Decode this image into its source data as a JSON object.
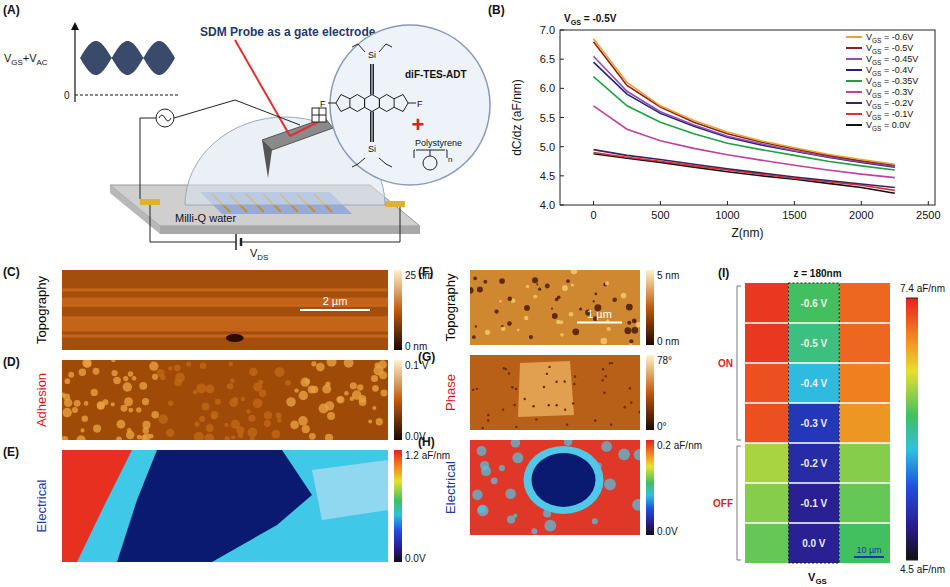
{
  "panel_a": {
    "panel_label": "(A)",
    "title": "SDM Probe as a gate electrode",
    "signal_label": "VGS+VAC",
    "zero_label": "0",
    "medium": "Milli-Q water",
    "bias_label": "VDS",
    "molecule": "diF-TES-ADT",
    "polymer": "Polystyrene",
    "plus": "+",
    "atom_si": "Si",
    "atom_f": "F",
    "repeat": "n"
  },
  "chart_data": {
    "type": "line",
    "panel_label": "(B)",
    "annotation": "VGS = -0.5V",
    "x_label": "Z(nm)",
    "y_label": "dC/dz (aF/nm)",
    "x": [
      0,
      250,
      500,
      750,
      1000,
      1250,
      1500,
      1750,
      2000,
      2250
    ],
    "series": [
      {
        "name": "VGS = -0.6V",
        "color": "#f0a030",
        "values": [
          6.85,
          6.1,
          5.7,
          5.45,
          5.25,
          5.1,
          4.98,
          4.87,
          4.78,
          4.7
        ]
      },
      {
        "name": "VGS = -0.5V",
        "color": "#8b2020",
        "values": [
          6.8,
          6.05,
          5.68,
          5.42,
          5.22,
          5.08,
          4.96,
          4.85,
          4.76,
          4.68
        ]
      },
      {
        "name": "VGS = -0.45V",
        "color": "#9050b0",
        "values": [
          6.55,
          5.95,
          5.6,
          5.37,
          5.18,
          5.05,
          4.93,
          4.83,
          4.74,
          4.66
        ]
      },
      {
        "name": "VGS = -0.4V",
        "color": "#202080",
        "values": [
          6.45,
          5.9,
          5.57,
          5.35,
          5.16,
          5.03,
          4.92,
          4.82,
          4.73,
          4.65
        ]
      },
      {
        "name": "VGS = -0.35V",
        "color": "#20a040",
        "values": [
          6.2,
          5.7,
          5.42,
          5.22,
          5.06,
          4.95,
          4.85,
          4.75,
          4.67,
          4.6
        ]
      },
      {
        "name": "VGS = -0.3V",
        "color": "#c040a0",
        "values": [
          5.7,
          5.3,
          5.1,
          4.97,
          4.86,
          4.77,
          4.68,
          4.6,
          4.53,
          4.47
        ]
      },
      {
        "name": "VGS = -0.2V",
        "color": "#402060",
        "values": [
          4.95,
          4.85,
          4.78,
          4.7,
          4.62,
          4.55,
          4.48,
          4.42,
          4.36,
          4.3
        ]
      },
      {
        "name": "VGS = -0.1V",
        "color": "#e03030",
        "values": [
          4.9,
          4.82,
          4.75,
          4.67,
          4.6,
          4.53,
          4.46,
          4.4,
          4.34,
          4.25
        ]
      },
      {
        "name": "VGS = 0.0V",
        "color": "#111111",
        "values": [
          4.88,
          4.8,
          4.73,
          4.65,
          4.57,
          4.5,
          4.44,
          4.37,
          4.3,
          4.2
        ]
      }
    ],
    "xlim": [
      -250,
      2550
    ],
    "ylim": [
      4.0,
      7.0
    ],
    "xticks": [
      0,
      500,
      1000,
      1500,
      2000,
      2500
    ],
    "yticks": [
      {
        "value": 4.0,
        "label": "4.0"
      },
      4.5,
      {
        "value": 5.0,
        "label": "5.0"
      },
      5.5,
      {
        "value": 6.0,
        "label": "6.0"
      },
      6.5,
      {
        "value": 7.0,
        "label": "7.0"
      }
    ],
    "legend": "upper right",
    "grid": false
  },
  "images": [
    {
      "panel_label": "(C)",
      "row_title": "Topography",
      "color": "#000000",
      "type": "topography",
      "colorbar_max": "25 nm",
      "colorbar_min": "0 nm",
      "scale_bar": "2 µm"
    },
    {
      "panel_label": "(D)",
      "row_title": "Adhesion",
      "color": "#d01818",
      "type": "adhesion",
      "colorbar_max": "0.1 V",
      "colorbar_min": "0.0V"
    },
    {
      "panel_label": "(E)",
      "row_title": "Electrical",
      "color": "#1a3aa0",
      "type": "electrical",
      "colorbar_max": "1.2 aF/nm",
      "colorbar_min": "0.0V"
    },
    {
      "panel_label": "(F)",
      "row_title": "Topography",
      "color": "#000000",
      "type": "topography2",
      "colorbar_max": "5 nm",
      "colorbar_min": "0 nm",
      "scale_bar": "1 µm"
    },
    {
      "panel_label": "(G)",
      "row_title": "Phase",
      "color": "#d01818",
      "type": "phase",
      "colorbar_max": "78°",
      "colorbar_min": "0°"
    },
    {
      "panel_label": "(H)",
      "row_title": "Electrical",
      "color": "#1a3aa0",
      "type": "electrical2",
      "colorbar_max": "0.2 aF/nm",
      "colorbar_min": "0.0V"
    }
  ],
  "panel_i": {
    "panel_label": "(I)",
    "title": "z = 180nm",
    "x_label": "VGS",
    "scale_bar": "10 µm",
    "rows": [
      {
        "label": "-0.6 V",
        "left": 7.3,
        "channel": 6.1,
        "right": 7.1
      },
      {
        "label": "-0.5 V",
        "left": 7.3,
        "channel": 6.0,
        "right": 7.1
      },
      {
        "label": "-0.4 V",
        "left": 7.2,
        "channel": 5.7,
        "right": 7.0
      },
      {
        "label": "-0.3 V",
        "left": 7.2,
        "channel": 5.1,
        "right": 6.9
      },
      {
        "label": "-0.2 V",
        "left": 6.4,
        "channel": 5.0,
        "right": 6.3
      },
      {
        "label": "-0.1 V",
        "left": 6.3,
        "channel": 4.9,
        "right": 6.2
      },
      {
        "label": "0.0 V",
        "left": 6.2,
        "channel": 4.9,
        "right": 6.1
      }
    ],
    "groups": [
      {
        "label": "ON",
        "count": 4
      },
      {
        "label": "OFF",
        "count": 3
      }
    ],
    "colorbar": {
      "range": [
        4.5,
        7.4
      ],
      "ticks": [
        {
          "value": 7.4,
          "label": "7.4 aF/nm"
        },
        {
          "value": 4.5,
          "label": "4.5 aF/nm"
        }
      ]
    }
  }
}
